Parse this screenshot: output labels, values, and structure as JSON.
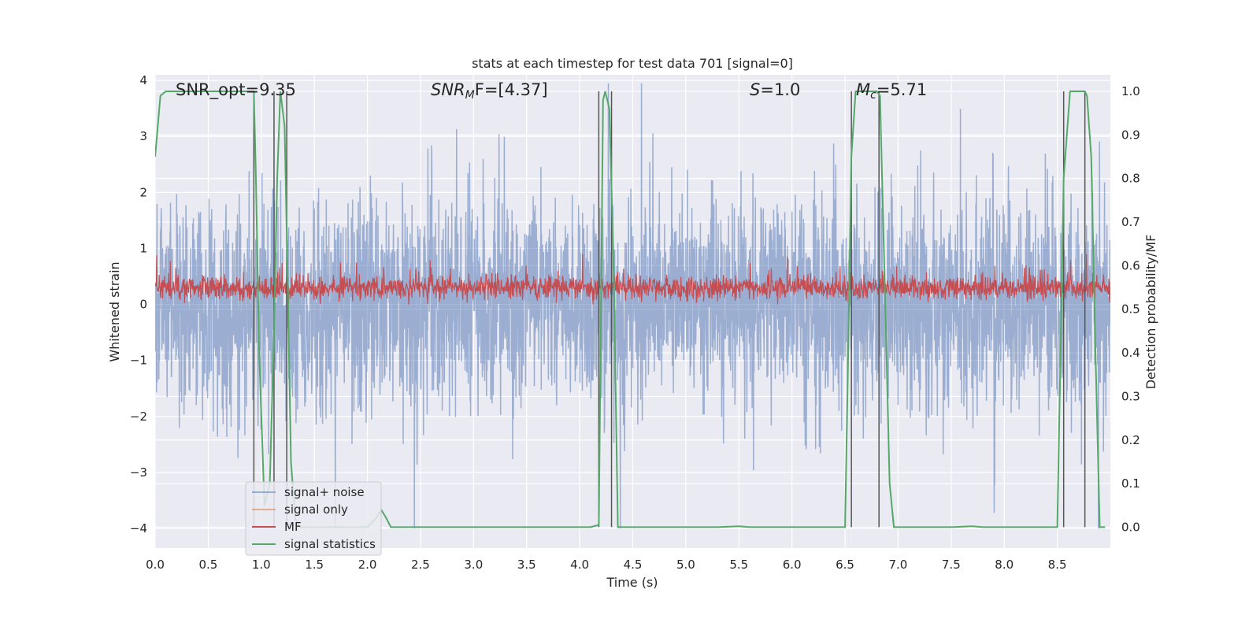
{
  "chart_data": {
    "type": "line",
    "title": "stats at each timestep for test data 701 [signal=0]",
    "xlabel": "Time (s)",
    "ylabel": "Whitened strain",
    "ylabel_right": "Detection probability/MF",
    "xlim": [
      0,
      9.0
    ],
    "ylim": [
      -4.35,
      4.1
    ],
    "ylim_right": [
      -0.048,
      1.038
    ],
    "x_ticks": [
      "0.0",
      "0.5",
      "1.0",
      "1.5",
      "2.0",
      "2.5",
      "3.0",
      "3.5",
      "4.0",
      "4.5",
      "5.0",
      "5.5",
      "6.0",
      "6.5",
      "7.0",
      "7.5",
      "8.0",
      "8.5"
    ],
    "y_ticks": [
      "−4",
      "−3",
      "−2",
      "−1",
      "0",
      "1",
      "2",
      "3",
      "4"
    ],
    "y_ticks_right": [
      "0.0",
      "0.1",
      "0.2",
      "0.3",
      "0.4",
      "0.5",
      "0.6",
      "0.7",
      "0.8",
      "0.9",
      "1.0"
    ],
    "grid": true,
    "legend_position": "lower-left",
    "annotations": {
      "snr_opt": "SNR_opt=9.35",
      "snr_mf_label": "SNR",
      "snr_mf_sub": "M",
      "snr_mf_rest": "F=[4.37]",
      "s_label": "S",
      "s_value": "=1.0",
      "mc_label": "M",
      "mc_sub": "c",
      "mc_value": "=5.71"
    },
    "series": [
      {
        "name": "signal+ noise",
        "color": "#4c72b0",
        "amplitude": "noise approx. within ±3.6, peaks near ±4"
      },
      {
        "name": "signal only",
        "color": "#dd8452",
        "values": []
      },
      {
        "name": "MF",
        "color": "#c44e52",
        "range": [
          0.0,
          0.9
        ]
      },
      {
        "name": "signal statistics",
        "color": "#55a868",
        "axis": "right",
        "x": [
          0.0,
          0.05,
          0.1,
          0.2,
          0.3,
          0.5,
          0.7,
          0.85,
          0.93,
          0.95,
          0.98,
          1.03,
          1.08,
          1.12,
          1.15,
          1.18,
          1.22,
          1.25,
          1.28,
          1.32,
          1.36,
          1.4,
          1.45,
          1.5,
          1.8,
          2.0,
          2.08,
          2.13,
          2.18,
          2.22,
          2.4,
          3.0,
          3.5,
          4.0,
          4.1,
          4.18,
          4.22,
          4.24,
          4.28,
          4.32,
          4.36,
          4.4,
          4.8,
          5.3,
          5.5,
          5.6,
          6.0,
          6.5,
          6.53,
          6.56,
          6.6,
          6.65,
          6.72,
          6.8,
          6.83,
          6.88,
          6.92,
          6.96,
          7.0,
          7.5,
          7.7,
          7.8,
          8.2,
          8.5,
          8.53,
          8.56,
          8.62,
          8.72,
          8.76,
          8.78,
          8.82,
          8.86,
          8.9,
          8.95
        ],
        "values": [
          0.85,
          0.99,
          1.0,
          1.0,
          1.0,
          1.0,
          1.0,
          1.0,
          1.0,
          0.8,
          0.4,
          0.05,
          0.1,
          0.45,
          0.8,
          1.0,
          0.92,
          0.55,
          0.15,
          0.02,
          0.0,
          0.0,
          0.0,
          0.0,
          0.0,
          0.0,
          0.02,
          0.04,
          0.02,
          0.0,
          0.0,
          0.0,
          0.0,
          0.0,
          0.0,
          0.005,
          0.98,
          1.0,
          0.96,
          0.6,
          0.0,
          0.0,
          0.0,
          0.0,
          0.002,
          0.0,
          0.0,
          0.0,
          0.4,
          0.85,
          1.0,
          1.0,
          1.0,
          1.0,
          0.99,
          0.5,
          0.1,
          0.0,
          0.0,
          0.0,
          0.002,
          0.0,
          0.0,
          0.0,
          0.4,
          0.8,
          1.0,
          1.0,
          1.0,
          0.99,
          0.85,
          0.4,
          0.0,
          0.0
        ]
      }
    ],
    "vertical_lines": [
      0.93,
      1.12,
      1.24,
      4.18,
      4.3,
      6.56,
      6.82,
      8.56,
      8.76
    ]
  }
}
